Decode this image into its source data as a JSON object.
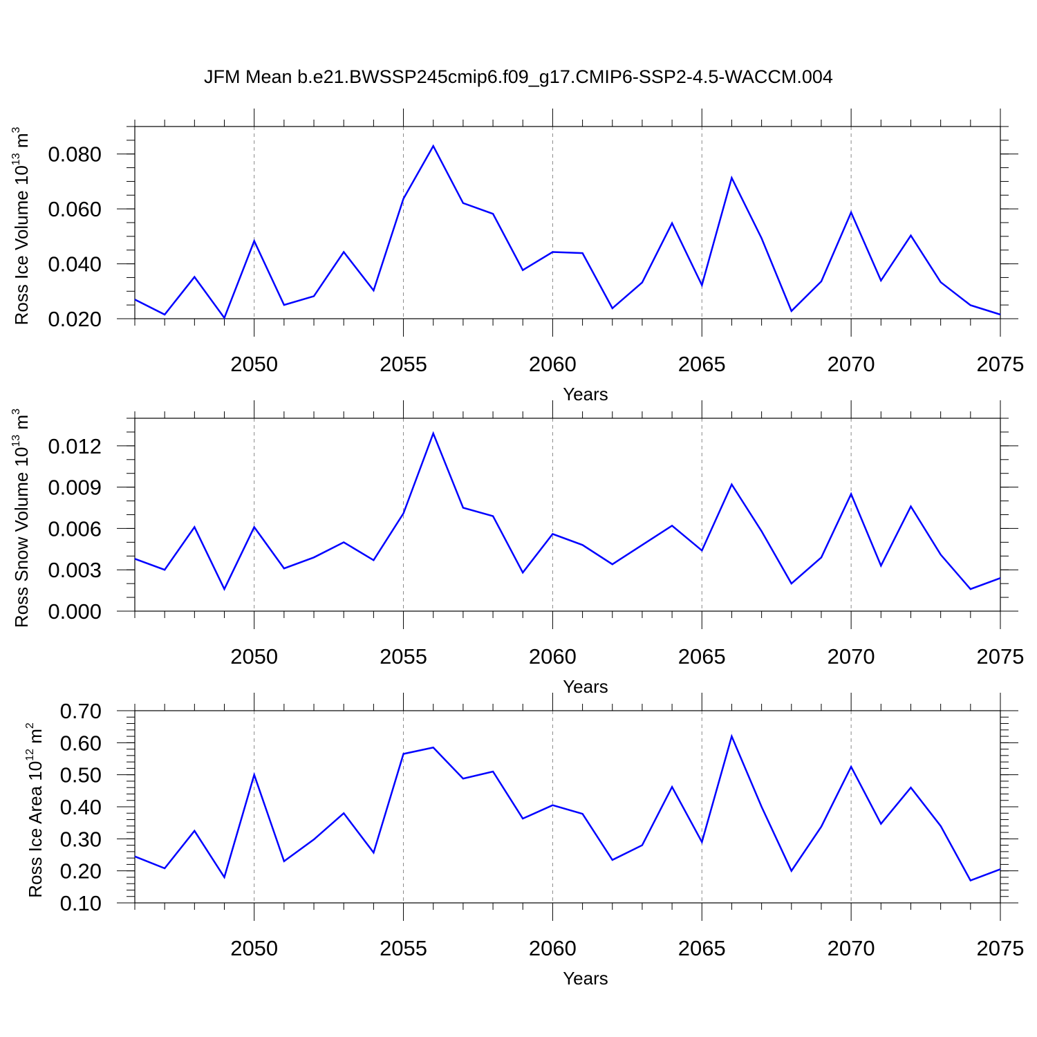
{
  "title": "JFM Mean b.e21.BWSSP245cmip6.f09_g17.CMIP6-SSP2-4.5-WACCM.004",
  "colors": {
    "line": "#0000ff",
    "grid": "#888888",
    "axis": "#000000"
  },
  "chart_data": [
    {
      "type": "line",
      "xlabel": "Years",
      "ylabel": {
        "prefix": "Ross Ice Volume 10",
        "exp": "13",
        "unit": " m",
        "unit_exp": "3"
      },
      "xlim": [
        2046,
        2075
      ],
      "ylim": [
        0.02,
        0.09
      ],
      "xticks": [
        2050,
        2055,
        2060,
        2065,
        2070,
        2075
      ],
      "yticks": [
        0.02,
        0.04,
        0.06,
        0.08
      ],
      "ytick_labels": [
        "0.020",
        "0.040",
        "0.060",
        "0.080"
      ],
      "y_minor_step": 0.005,
      "grid": "vertical-dashed",
      "x": [
        2046,
        2047,
        2048,
        2049,
        2050,
        2051,
        2052,
        2053,
        2054,
        2055,
        2056,
        2057,
        2058,
        2059,
        2060,
        2061,
        2062,
        2063,
        2064,
        2065,
        2066,
        2067,
        2068,
        2069,
        2070,
        2071,
        2072,
        2073,
        2074,
        2075
      ],
      "values": [
        0.027,
        0.0215,
        0.0352,
        0.0203,
        0.0483,
        0.025,
        0.0282,
        0.0443,
        0.0303,
        0.0637,
        0.0829,
        0.0621,
        0.0582,
        0.0377,
        0.0443,
        0.0439,
        0.0238,
        0.0332,
        0.0548,
        0.0322,
        0.0713,
        0.0493,
        0.0228,
        0.0336,
        0.0587,
        0.0339,
        0.0503,
        0.0333,
        0.0249,
        0.0215
      ]
    },
    {
      "type": "line",
      "xlabel": "Years",
      "ylabel": {
        "prefix": "Ross Snow Volume 10",
        "exp": "13",
        "unit": " m",
        "unit_exp": "3"
      },
      "xlim": [
        2046,
        2075
      ],
      "ylim": [
        0.0,
        0.014
      ],
      "xticks": [
        2050,
        2055,
        2060,
        2065,
        2070,
        2075
      ],
      "yticks": [
        0.0,
        0.003,
        0.006,
        0.009,
        0.012
      ],
      "ytick_labels": [
        "0.000",
        "0.003",
        "0.006",
        "0.009",
        "0.012"
      ],
      "y_minor_step": 0.001,
      "grid": "vertical-dashed",
      "x": [
        2046,
        2047,
        2048,
        2049,
        2050,
        2051,
        2052,
        2053,
        2054,
        2055,
        2056,
        2057,
        2058,
        2059,
        2060,
        2061,
        2062,
        2063,
        2064,
        2065,
        2066,
        2067,
        2068,
        2069,
        2070,
        2071,
        2072,
        2073,
        2074,
        2075
      ],
      "values": [
        0.0038,
        0.003,
        0.0061,
        0.0016,
        0.0061,
        0.0031,
        0.0039,
        0.005,
        0.0037,
        0.0071,
        0.0129,
        0.0075,
        0.0069,
        0.0028,
        0.0056,
        0.0048,
        0.0034,
        0.0048,
        0.0062,
        0.0044,
        0.0092,
        0.0058,
        0.002,
        0.0039,
        0.0085,
        0.0033,
        0.0076,
        0.0041,
        0.0016,
        0.0024
      ]
    },
    {
      "type": "line",
      "xlabel": "Years",
      "ylabel": {
        "prefix": "Ross Ice Area 10",
        "exp": "12",
        "unit": " m",
        "unit_exp": "2"
      },
      "xlim": [
        2046,
        2075
      ],
      "ylim": [
        0.1,
        0.7
      ],
      "xticks": [
        2050,
        2055,
        2060,
        2065,
        2070,
        2075
      ],
      "yticks": [
        0.1,
        0.2,
        0.3,
        0.4,
        0.5,
        0.6,
        0.7
      ],
      "ytick_labels": [
        "0.10",
        "0.20",
        "0.30",
        "0.40",
        "0.50",
        "0.60",
        "0.70"
      ],
      "y_minor_step": 0.02,
      "grid": "vertical-dashed",
      "x": [
        2046,
        2047,
        2048,
        2049,
        2050,
        2051,
        2052,
        2053,
        2054,
        2055,
        2056,
        2057,
        2058,
        2059,
        2060,
        2061,
        2062,
        2063,
        2064,
        2065,
        2066,
        2067,
        2068,
        2069,
        2070,
        2071,
        2072,
        2073,
        2074,
        2075
      ],
      "values": [
        0.245,
        0.208,
        0.325,
        0.18,
        0.5,
        0.23,
        0.298,
        0.38,
        0.257,
        0.565,
        0.585,
        0.488,
        0.51,
        0.363,
        0.405,
        0.378,
        0.234,
        0.28,
        0.462,
        0.29,
        0.62,
        0.4,
        0.2,
        0.338,
        0.525,
        0.347,
        0.46,
        0.34,
        0.17,
        0.205
      ]
    }
  ]
}
